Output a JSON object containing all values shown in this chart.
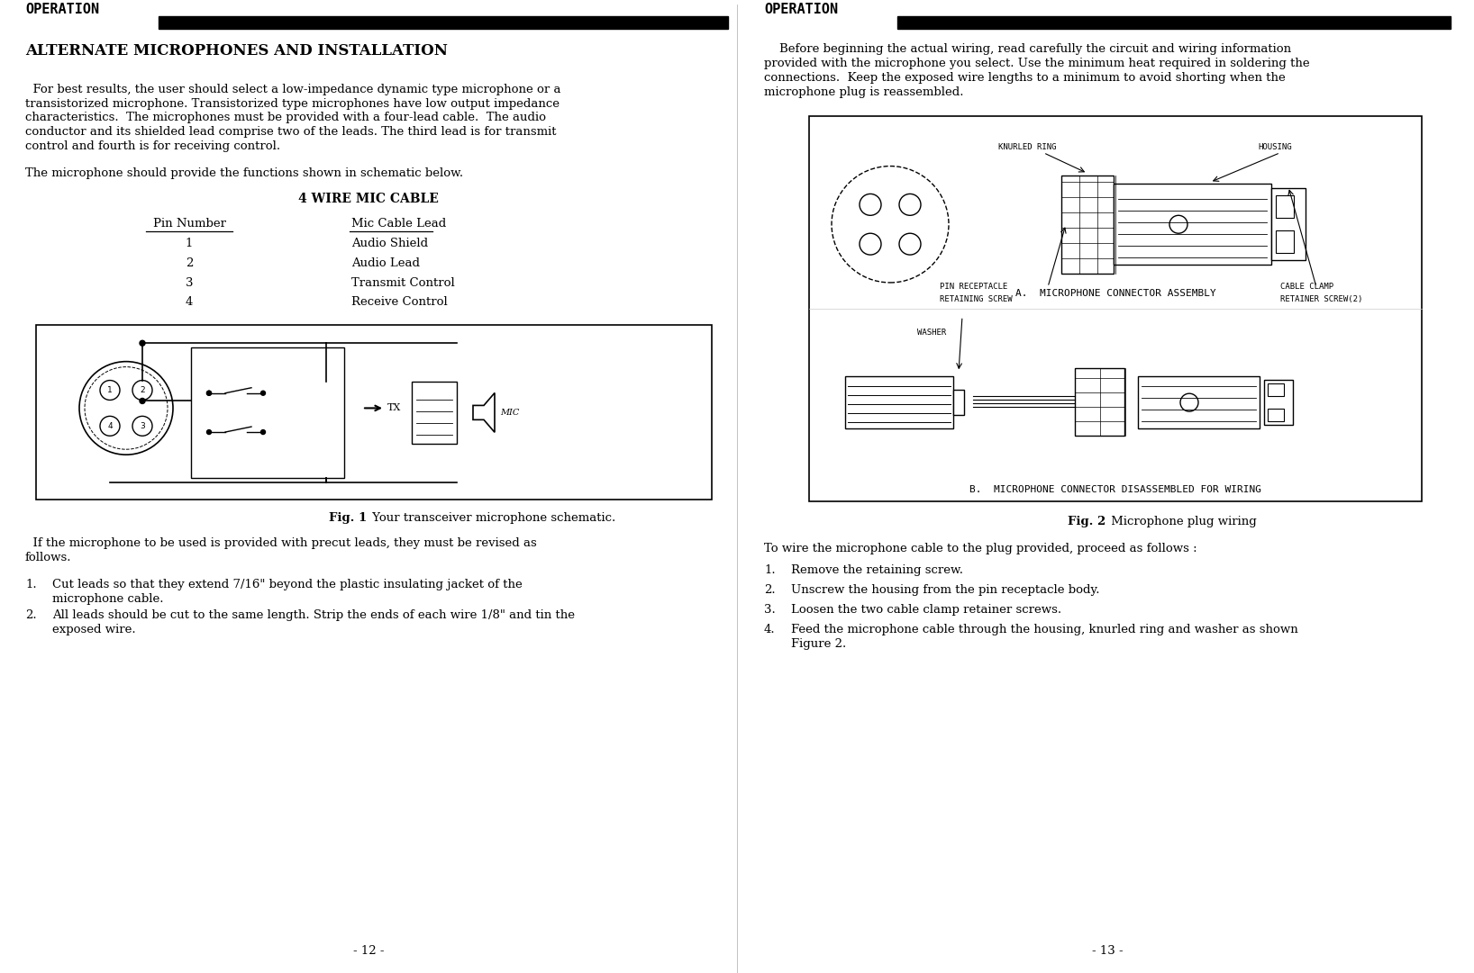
{
  "bg_color": "#ffffff",
  "text_color": "#000000",
  "left_page": {
    "header_text": "OPERATION",
    "title": "ALTERNATE MICROPHONES AND INSTALLATION",
    "para1_lines": [
      "  For best results, the user should select a low-impedance dynamic type microphone or a",
      "transistorized microphone. Transistorized type microphones have low output impedance",
      "characteristics.  The microphones must be provided with a four-lead cable.  The audio",
      "conductor and its shielded lead comprise two of the leads. The third lead is for transmit",
      "control and fourth is for receiving control."
    ],
    "para2": "The microphone should provide the functions shown in schematic below.",
    "table_title": "4 WIRE MIC CABLE",
    "col1_header": "Pin Number",
    "col2_header": "Mic Cable Lead",
    "rows": [
      [
        "1",
        "Audio Shield"
      ],
      [
        "2",
        "Audio Lead"
      ],
      [
        "3",
        "Transmit Control"
      ],
      [
        "4",
        "Receive Control"
      ]
    ],
    "fig1_caption_bold": "Fig. 1",
    "fig1_caption_rest": " Your transceiver microphone schematic.",
    "para3_lines": [
      "  If the microphone to be used is provided with precut leads, they must be revised as",
      "follows."
    ],
    "list1_text": "Cut leads so that they extend 7/16\" beyond the plastic insulating jacket of the",
    "list1_cont": "microphone cable.",
    "list2_text": "All leads should be cut to the same length. Strip the ends of each wire 1/8\" and tin the",
    "list2_cont": "exposed wire.",
    "footer": "- 12 -"
  },
  "right_page": {
    "header_text": "OPERATION",
    "para1_lines": [
      "    Before beginning the actual wiring, read carefully the circuit and wiring information",
      "provided with the microphone you select. Use the minimum heat required in soldering the",
      "connections.  Keep the exposed wire lengths to a minimum to avoid shorting when the",
      "microphone plug is reassembled."
    ],
    "fig2_caption_bold": "Fig. 2",
    "fig2_caption_rest": " Microphone plug wiring",
    "para2": "To wire the microphone cable to the plug provided, proceed as follows :",
    "list1_text": "Remove the retaining screw.",
    "list2_text": "Unscrew the housing from the pin receptacle body.",
    "list3_text": "Loosen the two cable clamp retainer screws.",
    "list4_text": "Feed the microphone cable through the housing, knurled ring and washer as shown",
    "list4_cont": "Figure 2.",
    "footer": "- 13 -"
  }
}
